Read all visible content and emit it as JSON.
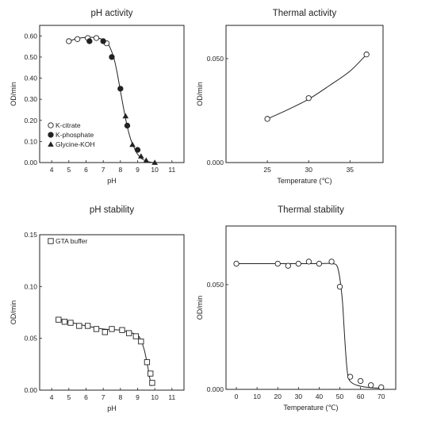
{
  "chart_data": [
    {
      "type": "scatter",
      "title": "pH activity",
      "xlabel": "pH",
      "ylabel": "OD/min",
      "xlim": [
        3.3,
        11.7
      ],
      "ylim": [
        0,
        0.65
      ],
      "xticks": [
        4,
        5,
        6,
        7,
        8,
        9,
        10,
        11
      ],
      "yticks": [
        0.0,
        0.1,
        0.2,
        0.3,
        0.4,
        0.5,
        0.6
      ],
      "ytick_labels": [
        "0.00",
        "0.10",
        "0.20",
        "0.30",
        "0.40",
        "0.50",
        "0.60"
      ],
      "legend_position": "bottom-left",
      "curve": {
        "x": [
          5.0,
          5.5,
          6.0,
          6.5,
          7.0,
          7.3,
          7.6,
          7.8,
          8.0,
          8.2,
          8.4,
          8.6,
          8.8,
          9.0,
          9.3,
          9.7,
          10.0
        ],
        "y": [
          0.575,
          0.588,
          0.593,
          0.592,
          0.582,
          0.56,
          0.5,
          0.43,
          0.34,
          0.25,
          0.17,
          0.11,
          0.07,
          0.04,
          0.015,
          0.003,
          0.0
        ]
      },
      "series": [
        {
          "name": "K-citrate",
          "marker": "open-circle",
          "x": [
            5.0,
            5.5,
            6.1,
            6.6,
            7.2
          ],
          "y": [
            0.575,
            0.585,
            0.59,
            0.59,
            0.565
          ]
        },
        {
          "name": "K-phosphate",
          "marker": "filled-circle",
          "x": [
            6.2,
            7.0,
            7.5,
            8.0,
            8.4,
            9.0
          ],
          "y": [
            0.575,
            0.575,
            0.5,
            0.35,
            0.175,
            0.06
          ]
        },
        {
          "name": "Glycine-KOH",
          "marker": "filled-triangle",
          "x": [
            8.3,
            8.7,
            9.2,
            9.5,
            10.0
          ],
          "y": [
            0.22,
            0.085,
            0.03,
            0.01,
            0.0
          ]
        }
      ]
    },
    {
      "type": "line",
      "title": "Thermal activity",
      "xlabel": "Temperature (℃)",
      "ylabel": "OD/min",
      "xlim": [
        20,
        39
      ],
      "ylim": [
        0,
        0.066
      ],
      "xticks": [
        25,
        30,
        35
      ],
      "yticks": [
        0.0,
        0.05
      ],
      "ytick_labels": [
        "0.000",
        "0.050"
      ],
      "curve": {
        "x": [
          25,
          27.5,
          30,
          32.5,
          35,
          37
        ],
        "y": [
          0.021,
          0.0255,
          0.0305,
          0.037,
          0.044,
          0.052
        ]
      },
      "series": [
        {
          "marker": "open-circle",
          "x": [
            25,
            30,
            37
          ],
          "y": [
            0.021,
            0.031,
            0.052
          ]
        }
      ]
    },
    {
      "type": "scatter",
      "title": "pH stability",
      "xlabel": "pH",
      "ylabel": "OD/min",
      "xlim": [
        3.3,
        11.7
      ],
      "ylim": [
        0,
        0.15
      ],
      "xticks": [
        4,
        5,
        6,
        7,
        8,
        9,
        10,
        11
      ],
      "yticks": [
        0.0,
        0.05,
        0.1,
        0.15
      ],
      "ytick_labels": [
        "0.00",
        "0.05",
        "0.10",
        "0.15"
      ],
      "legend_position": "top-left",
      "curve": {
        "x": [
          4.4,
          5.0,
          6.0,
          7.0,
          8.0,
          8.5,
          9.0,
          9.2,
          9.4,
          9.6,
          9.7,
          9.8
        ],
        "y": [
          0.068,
          0.066,
          0.062,
          0.059,
          0.058,
          0.056,
          0.053,
          0.048,
          0.038,
          0.022,
          0.012,
          0.004
        ]
      },
      "series": [
        {
          "name": "GTA buffer",
          "marker": "open-square",
          "x": [
            4.4,
            4.75,
            5.1,
            5.6,
            6.1,
            6.6,
            7.1,
            7.5,
            8.1,
            8.5,
            8.9,
            9.2,
            9.55,
            9.75,
            9.85
          ],
          "y": [
            0.068,
            0.066,
            0.065,
            0.062,
            0.062,
            0.059,
            0.056,
            0.059,
            0.058,
            0.055,
            0.052,
            0.047,
            0.027,
            0.016,
            0.007
          ]
        }
      ]
    },
    {
      "type": "line",
      "title": "Thermal stability",
      "xlabel": "Temperature (℃)",
      "ylabel": "OD/min",
      "xlim": [
        -5,
        77
      ],
      "ylim": [
        0,
        0.078
      ],
      "xticks": [
        0,
        10,
        20,
        30,
        40,
        50,
        60,
        70
      ],
      "yticks": [
        0.0,
        0.05
      ],
      "ytick_labels": [
        "0.000",
        "0.050"
      ],
      "curve": {
        "x": [
          0,
          10,
          20,
          30,
          40,
          46,
          49,
          51,
          52,
          53,
          54,
          56,
          60,
          65,
          70
        ],
        "y": [
          0.06,
          0.06,
          0.06,
          0.06,
          0.06,
          0.06,
          0.058,
          0.045,
          0.03,
          0.015,
          0.006,
          0.003,
          0.0015,
          0.0008,
          0.0005
        ]
      },
      "series": [
        {
          "marker": "open-circle",
          "x": [
            0,
            20,
            25,
            30,
            35,
            40,
            46,
            50,
            55,
            60,
            65,
            70
          ],
          "y": [
            0.06,
            0.06,
            0.059,
            0.06,
            0.061,
            0.06,
            0.061,
            0.049,
            0.006,
            0.004,
            0.002,
            0.001
          ]
        }
      ]
    }
  ]
}
